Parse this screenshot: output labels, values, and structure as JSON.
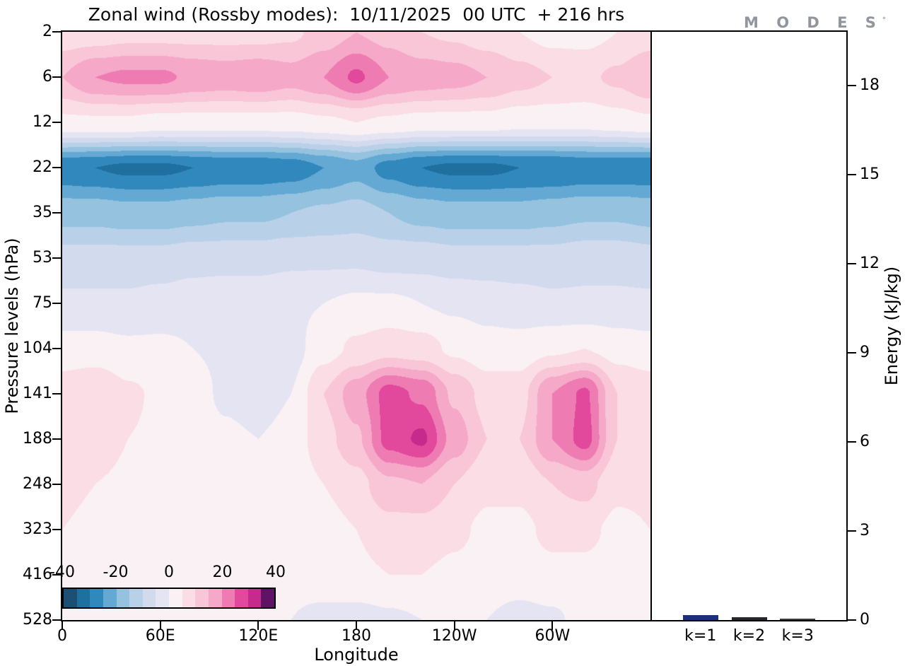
{
  "logo": {
    "text": "M O D E S",
    "mark": "°"
  },
  "chart_data": {
    "type": "heatmap",
    "title": "Zonal wind (Rossby modes):  10/11/2025  00 UTC  + 216 hrs",
    "xlabel": "Longitude",
    "ylabel": "Pressure levels (hPa)",
    "x_tick_labels": [
      "0",
      "60E",
      "120E",
      "180",
      "120W",
      "60W"
    ],
    "x_tick_degrees": [
      0,
      60,
      120,
      180,
      240,
      300
    ],
    "x_range_degrees": [
      0,
      360
    ],
    "pressure_levels": [
      2,
      6,
      12,
      22,
      35,
      53,
      75,
      104,
      141,
      188,
      248,
      323,
      416,
      528
    ],
    "lon": [
      0,
      20,
      40,
      60,
      80,
      100,
      120,
      140,
      160,
      180,
      200,
      220,
      240,
      260,
      280,
      300,
      320,
      340,
      360
    ],
    "contour_interval": 5,
    "vmin": -40,
    "vmax": 40,
    "values": [
      [
        7,
        7,
        8,
        8,
        8,
        8,
        8,
        9,
        12,
        15,
        13,
        10,
        9,
        7,
        5,
        3,
        3,
        5,
        7
      ],
      [
        15,
        20,
        21,
        21,
        19,
        18,
        19,
        17,
        20,
        26,
        20,
        18,
        17,
        15,
        12,
        10,
        9,
        11,
        15
      ],
      [
        4,
        4,
        4,
        3,
        3,
        3,
        3,
        3,
        4,
        5,
        4,
        3,
        3,
        3,
        2,
        2,
        2,
        3,
        4
      ],
      [
        -29,
        -30,
        -31,
        -31,
        -30,
        -29,
        -29,
        -28,
        -25,
        -22,
        -27,
        -30,
        -31,
        -31,
        -30,
        -30,
        -29,
        -29,
        -29
      ],
      [
        -17,
        -17,
        -18,
        -18,
        -17,
        -16,
        -16,
        -15,
        -14,
        -13,
        -15,
        -17,
        -18,
        -18,
        -18,
        -17,
        -16,
        -16,
        -17
      ],
      [
        -8,
        -8,
        -8,
        -8,
        -7,
        -7,
        -7,
        -6,
        -6,
        -6,
        -7,
        -7,
        -8,
        -8,
        -8,
        -8,
        -7,
        -7,
        -8
      ],
      [
        -4,
        -4,
        -4,
        -3,
        -2,
        -1,
        -1,
        -1,
        0,
        1,
        1,
        0,
        -1,
        -2,
        -3,
        -4,
        -4,
        -4,
        -4
      ],
      [
        2,
        2,
        1,
        1,
        0,
        -1,
        -3,
        -2,
        3,
        6,
        8,
        7,
        4,
        2,
        2,
        4,
        5,
        3,
        2
      ],
      [
        8,
        10,
        6,
        4,
        2,
        -1,
        -3,
        0,
        10,
        18,
        27,
        24,
        14,
        8,
        8,
        20,
        26,
        10,
        8
      ],
      [
        10,
        8,
        5,
        4,
        3,
        1,
        0,
        2,
        8,
        14,
        27,
        31,
        18,
        10,
        10,
        20,
        27,
        10,
        10
      ],
      [
        6,
        5,
        4,
        3,
        3,
        2,
        1,
        2,
        5,
        8,
        14,
        15,
        10,
        6,
        6,
        10,
        12,
        6,
        6
      ],
      [
        5,
        4,
        4,
        3,
        3,
        2,
        1,
        1,
        3,
        5,
        8,
        8,
        6,
        4,
        4,
        6,
        6,
        4,
        5
      ],
      [
        4,
        4,
        3,
        3,
        2,
        2,
        1,
        1,
        2,
        4,
        5,
        5,
        4,
        3,
        3,
        4,
        4,
        3,
        4
      ],
      [
        3,
        3,
        3,
        2,
        2,
        1,
        1,
        0,
        -1,
        -2,
        -1,
        0,
        1,
        0,
        -2,
        -1,
        2,
        2,
        3
      ]
    ],
    "colorbar": {
      "labels": [
        "-40",
        "-20",
        "0",
        "20",
        "40"
      ],
      "colors": [
        "#1b4f74",
        "#1f6f9f",
        "#3188bc",
        "#63a9d3",
        "#94c2df",
        "#b8d0e8",
        "#d2daee",
        "#e5e4f2",
        "#f9f1f3",
        "#fbdde5",
        "#f9c6d7",
        "#f5a8c7",
        "#ee7cb2",
        "#e2489b",
        "#c52a8c",
        "#5e1364"
      ]
    },
    "energy": {
      "type": "bar",
      "categories": [
        "k=1",
        "k=2",
        "k=3"
      ],
      "values": [
        0.16,
        0.09,
        0.04
      ],
      "bar_colors": [
        "#1b2f7d",
        "#252733",
        "#3a3d45"
      ],
      "ylabel": "Energy (kJ/kg)",
      "yticks": [
        0,
        3,
        6,
        9,
        12,
        15,
        18
      ],
      "ylim": [
        0,
        19.8
      ]
    }
  }
}
